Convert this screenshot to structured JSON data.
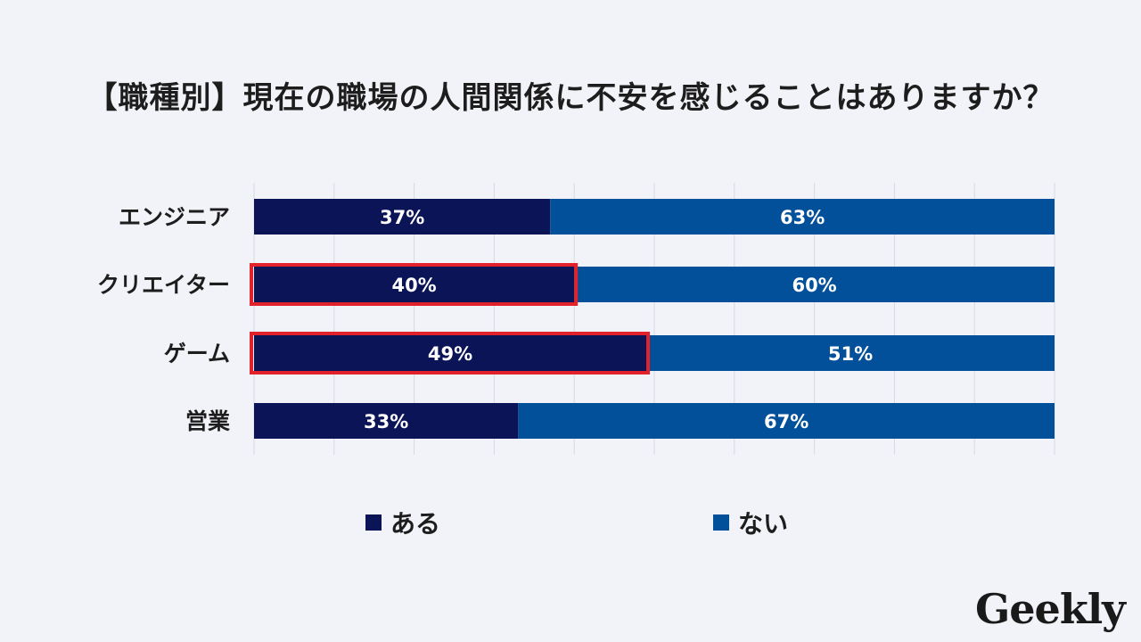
{
  "title": "【職種別】現在の職場の人間関係に不安を感じることはありますか？",
  "logo": "Geekly",
  "colors": {
    "aru": "#0a1457",
    "nai": "#03509a",
    "highlight": "#e1222b",
    "grid": "#d7d9e2"
  },
  "chart_data": {
    "type": "bar",
    "orientation": "horizontal",
    "stacked": true,
    "percent": true,
    "categories": [
      "エンジニア",
      "クリエイター",
      "ゲーム",
      "営業"
    ],
    "series": [
      {
        "name": "ある",
        "values": [
          37,
          40,
          49,
          33
        ],
        "labels": [
          "37%",
          "40%",
          "49%",
          "33%"
        ]
      },
      {
        "name": "ない",
        "values": [
          63,
          60,
          51,
          67
        ],
        "labels": [
          "63%",
          "60%",
          "51%",
          "67%"
        ]
      }
    ],
    "highlighted_categories": [
      "クリエイター",
      "ゲーム"
    ],
    "xlim": [
      0,
      100
    ],
    "grid": true,
    "legend": "bottom"
  }
}
